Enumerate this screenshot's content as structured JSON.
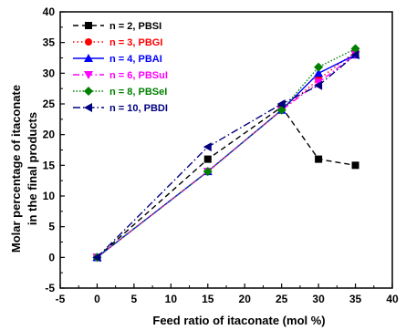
{
  "chart_data": {
    "type": "line",
    "title": "",
    "xlabel": "Feed ratio of itaconate (mol %)",
    "ylabel_lines": [
      "Molar percentage of itaconate",
      "in the final products"
    ],
    "xlim": [
      -5,
      40
    ],
    "ylim": [
      -5,
      40
    ],
    "xticks": [
      -5,
      0,
      5,
      10,
      15,
      20,
      25,
      30,
      35,
      40
    ],
    "yticks": [
      -5,
      0,
      5,
      10,
      15,
      20,
      25,
      30,
      35,
      40
    ],
    "x": [
      0,
      15,
      25,
      30,
      35
    ],
    "grid": false,
    "legend_position": "top-left",
    "series": [
      {
        "name": "n = 2, PBSI",
        "values": [
          0,
          16,
          24.5,
          16,
          15
        ],
        "color": "#000000",
        "dash": "6,4",
        "marker": "square"
      },
      {
        "name": "n = 3, PBGI",
        "values": [
          0,
          14,
          24,
          29,
          33.5
        ],
        "color": "#ff0000",
        "dash": "1.5,3",
        "marker": "circle"
      },
      {
        "name": "n = 4, PBAI",
        "values": [
          0,
          14,
          24,
          30,
          33
        ],
        "color": "#0000ff",
        "dash": "",
        "marker": "triangle-up"
      },
      {
        "name": "n = 6, PBSuI",
        "values": [
          0,
          14,
          24,
          28.5,
          33
        ],
        "color": "#ff00ff",
        "dash": "7,3,1.5,3",
        "marker": "triangle-down"
      },
      {
        "name": "n = 8, PBSeI",
        "values": [
          0,
          14,
          24,
          31,
          34
        ],
        "color": "#008000",
        "dash": "1.5,2",
        "marker": "diamond"
      },
      {
        "name": "n = 10, PBDI",
        "values": [
          0,
          18,
          25,
          28,
          33
        ],
        "color": "#000080",
        "dash": "8,3,1.5,3",
        "marker": "triangle-left"
      }
    ]
  }
}
